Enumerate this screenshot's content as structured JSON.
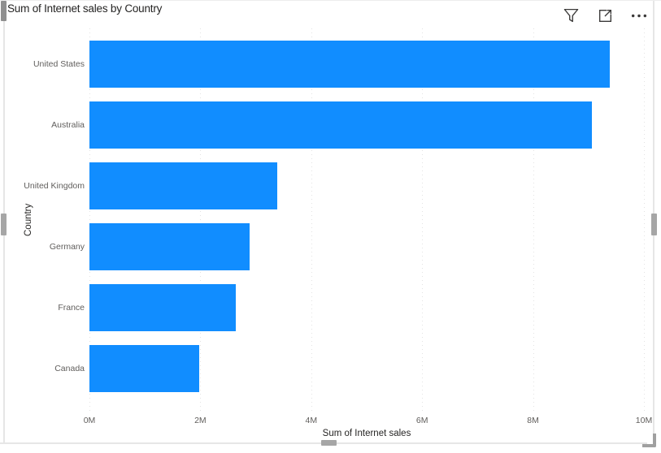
{
  "visual": {
    "title": "Sum of Internet sales by Country",
    "header_icons": [
      {
        "name": "filter-icon",
        "meaning": "filter (funnel)"
      },
      {
        "name": "focus-mode-icon",
        "meaning": "open in focus mode"
      },
      {
        "name": "more-options-icon",
        "meaning": "more options (ellipsis)"
      }
    ]
  },
  "chart_data": {
    "type": "bar",
    "orientation": "horizontal",
    "title": "Sum of Internet sales by Country",
    "categories": [
      "United States",
      "Australia",
      "United Kingdom",
      "Germany",
      "France",
      "Canada"
    ],
    "values": [
      9.39,
      9.06,
      3.39,
      2.89,
      2.64,
      1.98
    ],
    "value_unit": "millions",
    "xlabel": "Sum of Internet sales",
    "ylabel": "Country",
    "xlim": [
      0,
      10
    ],
    "x_ticks": [
      0,
      2,
      4,
      6,
      8,
      10
    ],
    "x_tick_labels": [
      "0M",
      "2M",
      "4M",
      "6M",
      "8M",
      "10M"
    ],
    "grid": true,
    "legend": false,
    "bar_color": "#118DFF"
  },
  "colors": {
    "bar": "#118DFF",
    "title_text": "#252423",
    "axis_title_text": "#252423",
    "tick_label_text": "#605e5c",
    "gridline": "#e3e3e3",
    "icon": "#3b3a39",
    "scrollbar_thumb": "#a6a6a6"
  }
}
